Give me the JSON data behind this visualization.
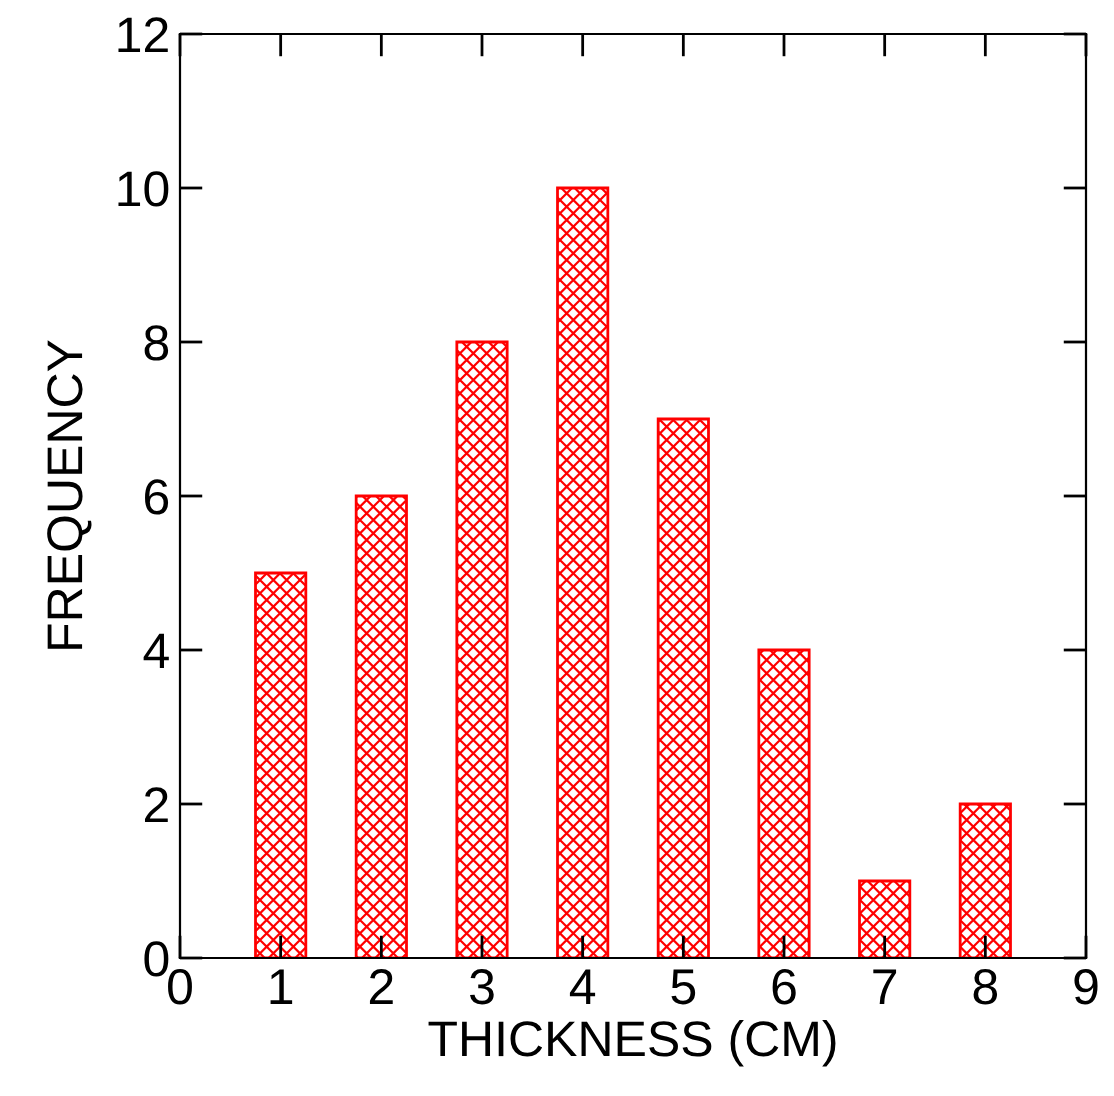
{
  "chart_data": {
    "type": "bar",
    "xlabel": "THICKNESS (CM)",
    "ylabel": "FREQUENCY",
    "x": [
      1,
      2,
      3,
      4,
      5,
      6,
      7,
      8
    ],
    "values": [
      5,
      6,
      8,
      10,
      7,
      4,
      1,
      2
    ],
    "color": "#ff0000",
    "xlim": [
      0,
      9
    ],
    "xticks": [
      0,
      1,
      2,
      3,
      4,
      5,
      6,
      7,
      8,
      9
    ],
    "ylim": [
      0,
      12
    ],
    "yticks": [
      0,
      2,
      4,
      6,
      8,
      10,
      12
    ],
    "grid": false,
    "legend": false
  }
}
